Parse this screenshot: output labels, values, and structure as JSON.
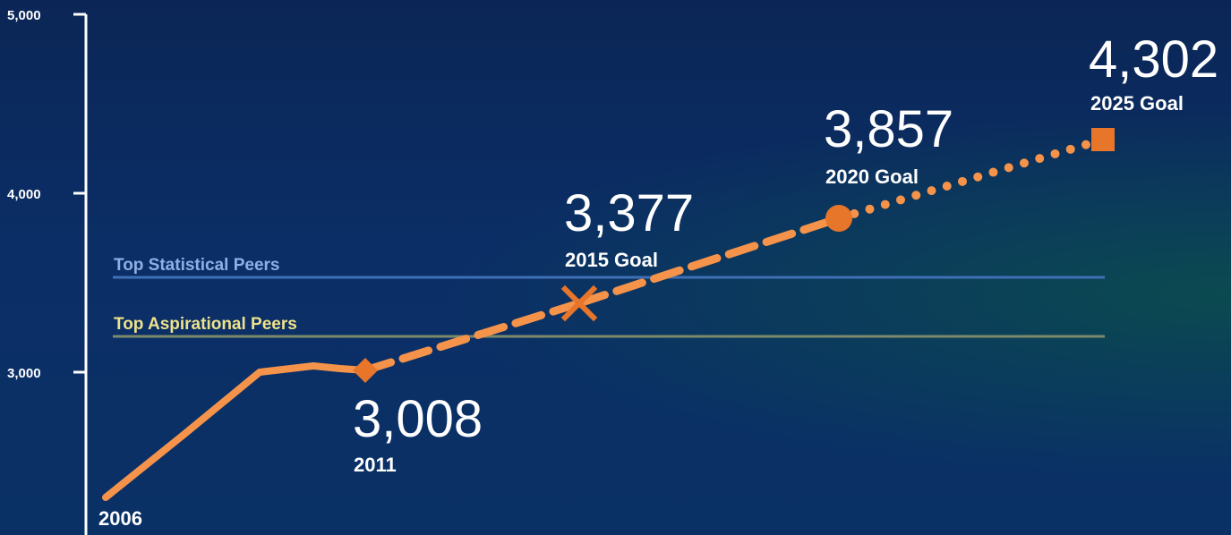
{
  "chart_data": {
    "type": "line",
    "y_ticks": [
      "5,000",
      "4,000",
      "3,000"
    ],
    "ylim": [
      2350,
      5000
    ],
    "y_axis_values": [
      5000,
      4000,
      3000
    ],
    "actual_series": {
      "x": [
        2006,
        2007,
        2008,
        2009,
        2010,
        2011
      ],
      "values": [
        2310,
        2660,
        3000,
        3040,
        3008,
        3008
      ],
      "color": "#f08a3c"
    },
    "projection_series": [
      {
        "from": 2011,
        "to": 2015,
        "values": [
          3008,
          3377
        ],
        "style": "dashed"
      },
      {
        "from": 2015,
        "to": 2020,
        "values": [
          3377,
          3857
        ],
        "style": "dashed"
      },
      {
        "from": 2020,
        "to": 2025,
        "values": [
          3857,
          4302
        ],
        "style": "dotted"
      }
    ],
    "milestones": [
      {
        "year": 2011,
        "value": 3008,
        "value_label": "3,008",
        "caption": "2011",
        "marker": "diamond"
      },
      {
        "year": 2015,
        "value": 3377,
        "value_label": "3,377",
        "caption": "2015 Goal",
        "marker": "x"
      },
      {
        "year": 2020,
        "value": 3857,
        "value_label": "3,857",
        "caption": "2020 Goal",
        "marker": "circle"
      },
      {
        "year": 2025,
        "value": 4302,
        "value_label": "4,302",
        "caption": "2025 Goal",
        "marker": "square"
      }
    ],
    "start_label": "2006",
    "reference_lines": [
      {
        "name": "Top Statistical Peers",
        "value": 3530,
        "color": "#3f6fb5",
        "label_color": "#8fb0e6"
      },
      {
        "name": "Top Aspirational Peers",
        "value": 3200,
        "color": "#7c8a6a",
        "label_color": "#efe28a"
      }
    ],
    "marker_color": "#e8762a",
    "line_color": "#f5934a"
  }
}
